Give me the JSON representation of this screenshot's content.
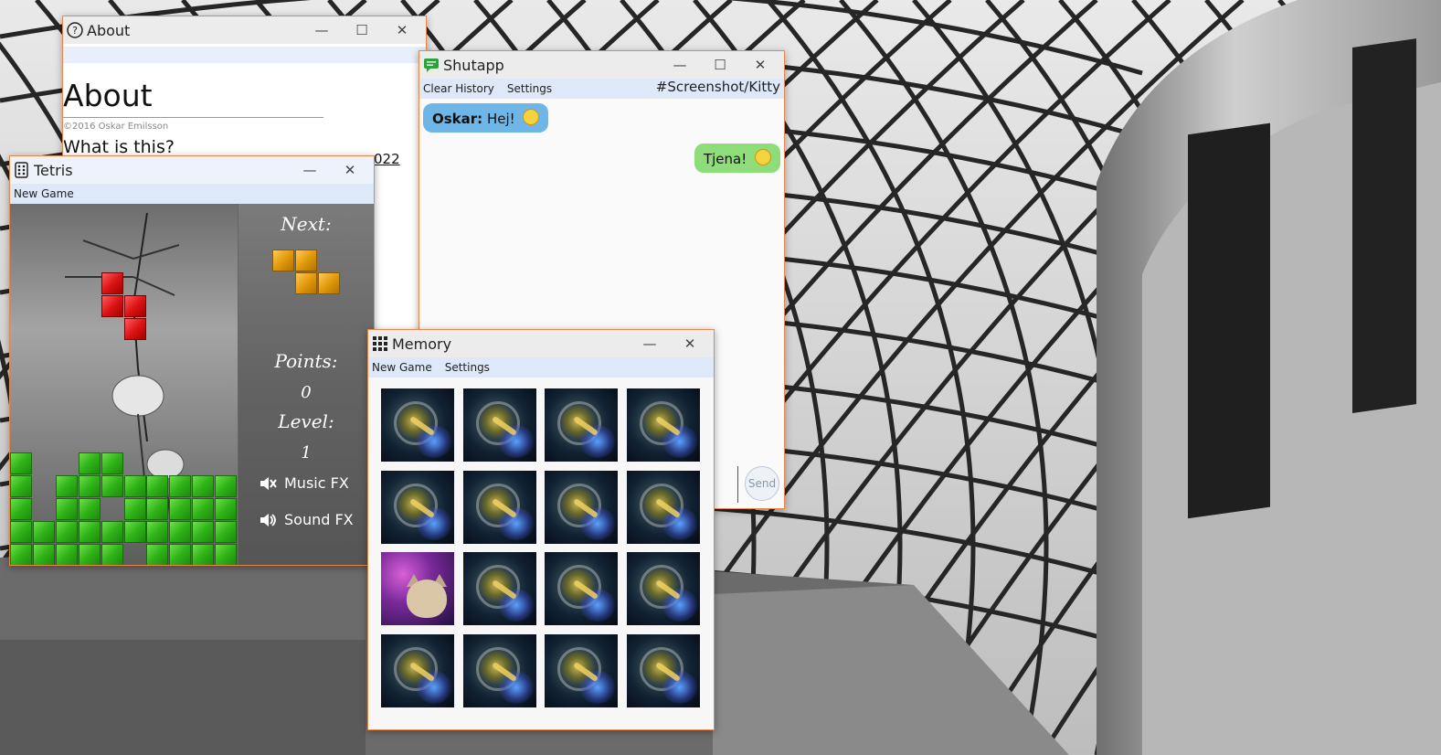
{
  "about": {
    "window_title": "About",
    "heading": "About",
    "copyright": "©2016 Oskar Emilsson",
    "subheading": "What is this?",
    "link_fragment": "022"
  },
  "shutapp": {
    "window_title": "Shutapp",
    "menu": [
      "Clear History",
      "Settings"
    ],
    "channel": "#Screenshot/Kitty",
    "messages": [
      {
        "author": "Oskar:",
        "text": "Hej!"
      },
      {
        "author": "",
        "text": "Tjena!"
      }
    ],
    "send_label": "Send"
  },
  "tetris": {
    "window_title": "Tetris",
    "menu": [
      "New Game"
    ],
    "next_label": "Next:",
    "points_label": "Points:",
    "points_value": "0",
    "level_label": "Level:",
    "level_value": "1",
    "music_label": "Music FX",
    "sound_label": "Sound FX"
  },
  "memory": {
    "window_title": "Memory",
    "menu": [
      "New Game",
      "Settings"
    ],
    "rows": 4,
    "cols": 4,
    "revealed_card_index": 8
  },
  "colors": {
    "window_border": "#e8874a",
    "menubar_bg": "#dde8f8",
    "bubble_incoming": "#6fb6e8",
    "bubble_outgoing": "#8fdc7a"
  }
}
